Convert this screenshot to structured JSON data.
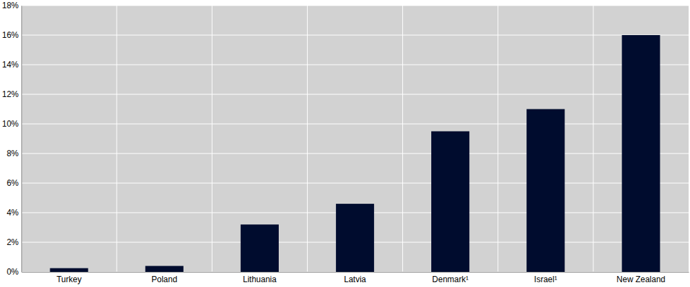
{
  "chart_data": {
    "type": "bar",
    "categories": [
      "Turkey",
      "Poland",
      "Lithuania",
      "Latvia",
      "Denmark¹",
      "Israel¹",
      "New Zealand"
    ],
    "values": [
      0.25,
      0.4,
      3.2,
      4.6,
      9.5,
      11.0,
      16.0
    ],
    "color": "#000c2e",
    "ylim": [
      0,
      18
    ],
    "yticks": [
      {
        "value": 0,
        "label": "0%"
      },
      {
        "value": 2,
        "label": "2%"
      },
      {
        "value": 4,
        "label": "4%"
      },
      {
        "value": 6,
        "label": "6%"
      },
      {
        "value": 8,
        "label": "8%"
      },
      {
        "value": 10,
        "label": "10%"
      },
      {
        "value": 12,
        "label": "12%"
      },
      {
        "value": 14,
        "label": "14%"
      },
      {
        "value": 16,
        "label": "16%"
      },
      {
        "value": 18,
        "label": "18%"
      }
    ],
    "grid": true
  }
}
